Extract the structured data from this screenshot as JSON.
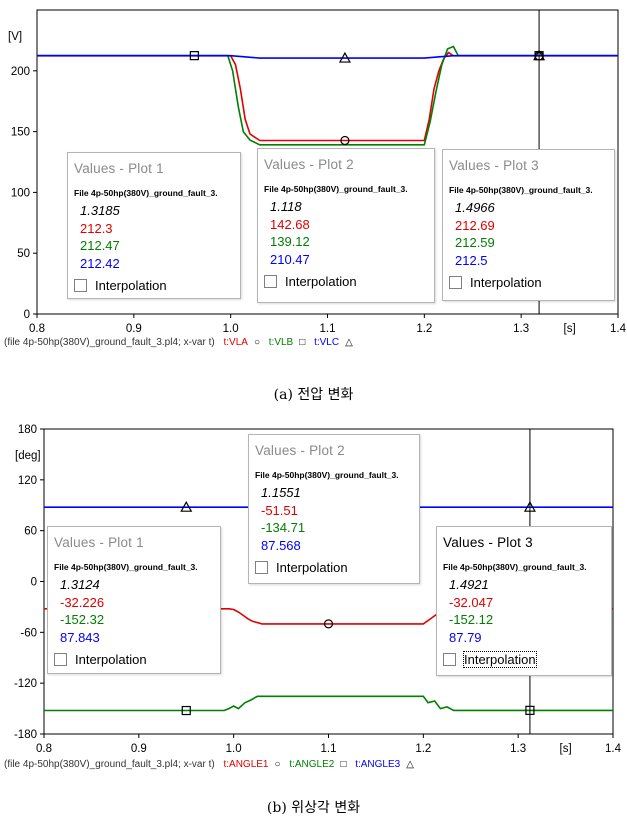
{
  "chart_data": [
    {
      "type": "line",
      "id": "a",
      "ylabel": "[V]",
      "xunit": "[s]",
      "xlim": [
        0.8,
        1.4
      ],
      "ylim": [
        0,
        250
      ],
      "xticks": [
        "0.8",
        "0.9",
        "1.0",
        "1.1",
        "1.2",
        "1.3",
        "1.4"
      ],
      "yticks": [
        "0",
        "50",
        "100",
        "150",
        "200"
      ],
      "cursor_x": 1.3185,
      "series": [
        {
          "name": "t:VLA",
          "color": "#e00000",
          "marker": "circle",
          "marker_x": 1.118,
          "x": [
            0.8,
            1.0,
            1.005,
            1.01,
            1.015,
            1.02,
            1.03,
            1.2,
            1.205,
            1.21,
            1.215,
            1.22,
            1.225,
            1.23,
            1.4
          ],
          "y": [
            212.3,
            212.3,
            205,
            185,
            160,
            148,
            142.68,
            142.68,
            160,
            185,
            200,
            210,
            215,
            212.3,
            212.3
          ]
        },
        {
          "name": "t:VLB",
          "color": "#008000",
          "marker": "square",
          "marker_x": 0.9625,
          "x": [
            0.8,
            0.997,
            1.002,
            1.008,
            1.013,
            1.02,
            1.03,
            1.2,
            1.206,
            1.212,
            1.218,
            1.224,
            1.23,
            1.235,
            1.4
          ],
          "y": [
            212.47,
            212.47,
            200,
            170,
            150,
            143,
            139.12,
            139.12,
            158,
            183,
            205,
            218,
            220,
            212.47,
            212.47
          ]
        },
        {
          "name": "t:VLC",
          "color": "#0000ff",
          "marker": "triangle",
          "marker_x": 1.118,
          "x": [
            0.8,
            1.0,
            1.03,
            1.2,
            1.23,
            1.4
          ],
          "y": [
            212.42,
            212.42,
            210.47,
            210.47,
            212.42,
            212.42
          ]
        }
      ],
      "value_boxes": [
        {
          "title": "Values - Plot 1",
          "file": "File 4p-50hp(380V)_ground_fault_3.",
          "t": "1.3185",
          "a": "212.3",
          "b": "212.47",
          "c": "212.42",
          "interp": "Interpolation"
        },
        {
          "title": "Values - Plot 2",
          "file": "File 4p-50hp(380V)_ground_fault_3.",
          "t": "1.118",
          "a": "142.68",
          "b": "139.12",
          "c": "210.47",
          "interp": "Interpolation"
        },
        {
          "title": "Values - Plot 3",
          "file": "File 4p-50hp(380V)_ground_fault_3.",
          "t": "1.4966",
          "a": "212.69",
          "b": "212.59",
          "c": "212.5",
          "interp": "Interpolation"
        }
      ],
      "footer": {
        "file": "(file 4p-50hp(380V)_ground_fault_3.pl4; x-var t)",
        "legend": [
          "t:VLA",
          "t:VLB",
          "t:VLC"
        ]
      },
      "caption": "(a) 전압 변화"
    },
    {
      "type": "line",
      "id": "b",
      "ylabel": "[deg]",
      "xunit": "[s]",
      "xlim": [
        0.8,
        1.4
      ],
      "ylim": [
        -180,
        180
      ],
      "xticks": [
        "0.8",
        "0.9",
        "1.0",
        "1.1",
        "1.2",
        "1.3",
        "1.4"
      ],
      "yticks": [
        "-180",
        "-120",
        "-60",
        "0",
        "60",
        "120",
        "180"
      ],
      "cursor_x": 1.3124,
      "series": [
        {
          "name": "t:ANGLE1",
          "color": "#e00000",
          "marker": "circle",
          "marker_x": 1.1,
          "x": [
            0.8,
            0.995,
            1.0,
            1.005,
            1.01,
            1.015,
            1.02,
            1.03,
            1.2,
            1.205,
            1.21,
            1.215,
            1.22,
            1.23,
            1.4
          ],
          "y": [
            -32.2,
            -32.2,
            -33,
            -36,
            -40,
            -44,
            -47,
            -50,
            -50,
            -46,
            -42,
            -38,
            -35,
            -32.1,
            -32.1
          ]
        },
        {
          "name": "t:ANGLE2",
          "color": "#008000",
          "marker": "square",
          "marker_x": 0.95,
          "x": [
            0.8,
            0.99,
            0.995,
            1.0,
            1.005,
            1.012,
            1.018,
            1.025,
            1.2,
            1.205,
            1.212,
            1.218,
            1.225,
            1.232,
            1.4
          ],
          "y": [
            -152.3,
            -152.3,
            -150,
            -147,
            -150,
            -143,
            -140,
            -135.5,
            -135.5,
            -143,
            -141,
            -150,
            -148,
            -152.1,
            -152.1
          ]
        },
        {
          "name": "t:ANGLE3",
          "color": "#0000ff",
          "marker": "triangle",
          "marker_x": 0.95,
          "x": [
            0.8,
            1.4
          ],
          "y": [
            87.7,
            87.7
          ]
        }
      ],
      "value_boxes": [
        {
          "title": "Values - Plot 1",
          "file": "File 4p-50hp(380V)_ground_fault_3.",
          "t": "1.3124",
          "a": "-32.226",
          "b": "-152.32",
          "c": "87.843",
          "interp": "Interpolation"
        },
        {
          "title": "Values - Plot 2",
          "file": "File 4p-50hp(380V)_ground_fault_3.",
          "t": "1.1551",
          "a": "-51.51",
          "b": "-134.71",
          "c": "87.568",
          "interp": "Interpolation"
        },
        {
          "title": "Values - Plot 3",
          "file": "File 4p-50hp(380V)_ground_fault_3.",
          "t": "1.4921",
          "a": "-32.047",
          "b": "-152.12",
          "c": "87.79",
          "interp": "Interpolation"
        }
      ],
      "footer": {
        "file": "(file 4p-50hp(380V)_ground_fault_3.pl4; x-var t)",
        "legend": [
          "t:ANGLE1",
          "t:ANGLE2",
          "t:ANGLE3"
        ]
      },
      "caption": "(b) 위상각 변화"
    }
  ]
}
